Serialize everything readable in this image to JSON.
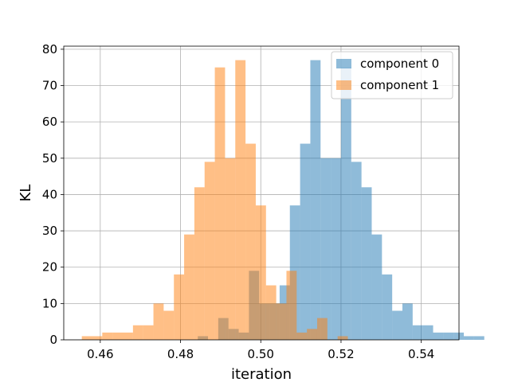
{
  "chart_data": {
    "type": "histogram",
    "xlabel": "iteration",
    "ylabel": "KL",
    "xlim": [
      0.4509,
      0.5494
    ],
    "ylim": [
      0,
      80.85
    ],
    "xticks": [
      0.46,
      0.48,
      0.5,
      0.52,
      0.54
    ],
    "xtick_labels": [
      "0.46",
      "0.48",
      "0.50",
      "0.52",
      "0.54"
    ],
    "yticks": [
      0,
      10,
      20,
      30,
      40,
      50,
      60,
      70,
      80
    ],
    "ytick_labels": [
      "0",
      "10",
      "20",
      "30",
      "40",
      "50",
      "60",
      "70",
      "80"
    ],
    "grid": true,
    "legend_position": "upper right",
    "series": [
      {
        "name": "component 0",
        "color": "#1f77b4",
        "alpha": 0.5,
        "bin_start": 0.4843,
        "bin_width": 0.00255,
        "counts": [
          1,
          0,
          6,
          3,
          2,
          19,
          10,
          10,
          15,
          37,
          54,
          77,
          50,
          50,
          75,
          49,
          42,
          29,
          18,
          8,
          10,
          4,
          4,
          2,
          2,
          2,
          1,
          1
        ]
      },
      {
        "name": "component 1",
        "color": "#ff7f0e",
        "alpha": 0.5,
        "bin_start": 0.4554,
        "bin_width": 0.00255,
        "counts": [
          1,
          1,
          2,
          2,
          2,
          4,
          4,
          10,
          8,
          18,
          29,
          42,
          49,
          75,
          50,
          77,
          54,
          37,
          15,
          10,
          19,
          2,
          3,
          6,
          0,
          1
        ]
      }
    ]
  }
}
